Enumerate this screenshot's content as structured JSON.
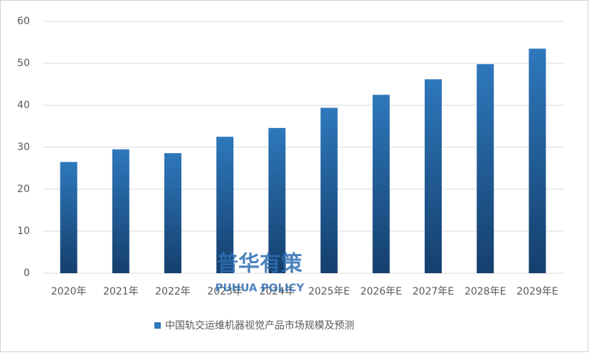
{
  "chart_data": {
    "type": "bar",
    "categories": [
      "2020年",
      "2021年",
      "2022年",
      "2023年",
      "2024年",
      "2025年E",
      "2026年E",
      "2027年E",
      "2028年E",
      "2029年E"
    ],
    "series": [
      {
        "name": "中国轨交运维机器视觉产品市场规模及预测",
        "color": "#2e78bc",
        "values": [
          26.5,
          29.5,
          28.6,
          32.5,
          34.6,
          39.4,
          42.5,
          46.2,
          49.8,
          53.5
        ]
      }
    ],
    "ylim": [
      0,
      60
    ],
    "yticks": [
      0,
      10,
      20,
      30,
      40,
      50,
      60
    ],
    "grid": true,
    "legend": "bottom",
    "watermark": {
      "title": "普华有策",
      "subtitle": "PUHUA POLICY"
    }
  }
}
